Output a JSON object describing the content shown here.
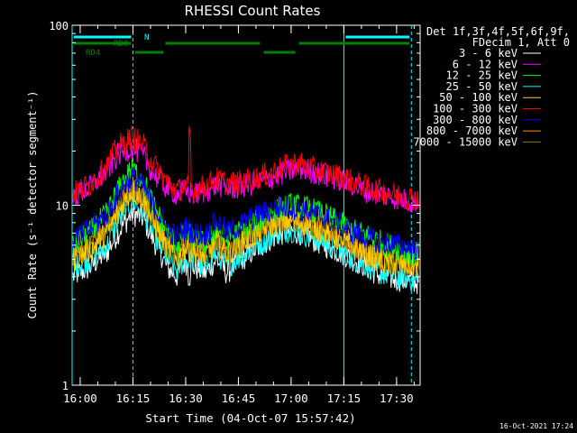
{
  "chart_data": {
    "type": "line",
    "title": "RHESSI Count Rates",
    "xlabel": "Start Time (04-Oct-07 15:57:42)",
    "ylabel": "Count Rate (s⁻¹ detector segment⁻¹)",
    "x_unit": "minutes after 15:57:42",
    "xlim": [
      0,
      99
    ],
    "ylim": [
      1,
      100
    ],
    "y_scale": "log",
    "x_ticks": [
      {
        "label": "16:00",
        "t": 2.3
      },
      {
        "label": "16:15",
        "t": 17.3
      },
      {
        "label": "16:30",
        "t": 32.3
      },
      {
        "label": "16:45",
        "t": 47.3
      },
      {
        "label": "17:00",
        "t": 62.3
      },
      {
        "label": "17:15",
        "t": 77.3
      },
      {
        "label": "17:30",
        "t": 92.3
      }
    ],
    "y_ticks": [
      {
        "label": "1",
        "value": 1
      },
      {
        "label": "10",
        "value": 10
      },
      {
        "label": "100",
        "value": 100
      }
    ],
    "legend_header": [
      "Det 1f,3f,4f,5f,6f,9f,",
      "FDecim 1, Att 0"
    ],
    "legend_position": "right",
    "timestamp": "16-Oct-2021 17:24",
    "series": [
      {
        "name": "3 - 6 keV",
        "color": "#ffffff",
        "x": [
          0,
          5,
          10,
          13,
          17,
          20,
          23,
          27,
          30,
          32,
          35,
          38,
          41,
          44,
          47,
          50,
          54,
          58,
          62,
          65,
          68,
          72,
          76,
          80,
          84,
          88,
          92,
          96,
          99
        ],
        "y": [
          4.0,
          4.5,
          5.5,
          7.0,
          9.0,
          8.5,
          6.5,
          4.5,
          4.0,
          4.8,
          4.5,
          4.2,
          5.0,
          4.2,
          4.8,
          5.3,
          6.0,
          6.8,
          7.2,
          7.0,
          6.5,
          6.0,
          5.5,
          5.0,
          4.5,
          4.0,
          3.9,
          3.8,
          3.7
        ]
      },
      {
        "name": "6 - 12 keV",
        "color": "#ff00ff",
        "x": [
          0,
          5,
          10,
          13,
          17,
          20,
          23,
          27,
          30,
          32,
          35,
          38,
          41,
          44,
          47,
          50,
          54,
          58,
          62,
          65,
          68,
          72,
          76,
          80,
          84,
          88,
          92,
          96,
          99
        ],
        "y": [
          11.0,
          12.5,
          15.5,
          19.0,
          21.0,
          19.0,
          15.0,
          12.5,
          11.5,
          12.0,
          11.5,
          12.0,
          13.0,
          12.5,
          12.5,
          13.0,
          13.5,
          14.5,
          15.5,
          16.0,
          15.5,
          14.5,
          14.0,
          13.0,
          12.0,
          11.5,
          11.0,
          10.5,
          10.5
        ]
      },
      {
        "name": "12 - 25 keV",
        "color": "#00ff00",
        "x": [
          0,
          5,
          10,
          13,
          17,
          20,
          23,
          27,
          30,
          32,
          35,
          38,
          41,
          44,
          47,
          50,
          54,
          58,
          62,
          65,
          68,
          72,
          76,
          80,
          84,
          88,
          92,
          96,
          99
        ],
        "y": [
          6.0,
          7.0,
          9.0,
          12.0,
          16.0,
          14.0,
          10.0,
          7.0,
          6.0,
          7.0,
          6.5,
          6.0,
          7.5,
          6.5,
          7.0,
          7.5,
          8.5,
          9.5,
          10.0,
          9.8,
          9.5,
          8.8,
          8.0,
          7.2,
          6.8,
          6.2,
          5.8,
          5.5,
          5.3
        ]
      },
      {
        "name": "25 - 50 keV",
        "color": "#00ffff",
        "x": [
          0,
          5,
          10,
          13,
          17,
          20,
          23,
          27,
          30,
          32,
          35,
          38,
          41,
          44,
          47,
          50,
          54,
          58,
          62,
          65,
          68,
          72,
          76,
          80,
          84,
          88,
          92,
          96,
          99
        ],
        "y": [
          4.5,
          5.0,
          6.0,
          8.0,
          10.5,
          9.5,
          7.0,
          5.0,
          4.3,
          5.0,
          4.8,
          4.5,
          5.5,
          4.6,
          5.0,
          5.5,
          6.2,
          7.0,
          7.3,
          7.0,
          6.7,
          6.2,
          5.6,
          5.0,
          4.6,
          4.2,
          4.0,
          3.9,
          3.8
        ]
      },
      {
        "name": "50 - 100 keV",
        "color": "#ffcc00",
        "x": [
          0,
          5,
          10,
          13,
          17,
          20,
          23,
          27,
          30,
          32,
          35,
          38,
          41,
          44,
          47,
          50,
          54,
          58,
          62,
          65,
          68,
          72,
          76,
          80,
          84,
          88,
          92,
          96,
          99
        ],
        "y": [
          5.0,
          5.6,
          7.0,
          9.0,
          12.0,
          11.0,
          8.0,
          5.8,
          5.0,
          5.8,
          5.5,
          5.2,
          6.3,
          5.4,
          5.9,
          6.4,
          7.2,
          8.0,
          8.3,
          8.0,
          7.6,
          7.1,
          6.5,
          5.8,
          5.3,
          4.9,
          4.7,
          4.6,
          4.5
        ]
      },
      {
        "name": "100 - 300 keV",
        "color": "#ff0000",
        "x": [
          0,
          5,
          10,
          13,
          17,
          20,
          23,
          27,
          30,
          32,
          35,
          38,
          41,
          44,
          47,
          50,
          54,
          58,
          62,
          65,
          68,
          72,
          76,
          80,
          84,
          88,
          92,
          96,
          99
        ],
        "y": [
          11.5,
          13.0,
          16.5,
          21.0,
          24.0,
          22.0,
          17.0,
          13.5,
          12.0,
          12.8,
          12.3,
          12.8,
          14.0,
          13.2,
          13.3,
          13.8,
          14.5,
          15.5,
          17.0,
          17.0,
          16.0,
          15.2,
          14.5,
          13.5,
          12.5,
          12.0,
          11.5,
          11.0,
          10.8
        ]
      },
      {
        "name": "300 - 800 keV",
        "color": "#0000ff",
        "x": [
          0,
          5,
          10,
          13,
          17,
          20,
          23,
          27,
          30,
          32,
          35,
          38,
          41,
          44,
          47,
          50,
          54,
          58,
          62,
          65,
          68,
          72,
          76,
          80,
          84,
          88,
          92,
          96,
          99
        ],
        "y": [
          6.5,
          7.3,
          9.0,
          11.5,
          14.5,
          13.0,
          10.0,
          7.5,
          6.5,
          7.5,
          7.0,
          6.8,
          8.2,
          7.0,
          7.6,
          8.2,
          9.0,
          9.6,
          9.8,
          9.5,
          9.1,
          8.5,
          7.8,
          7.0,
          6.6,
          6.2,
          6.0,
          5.8,
          5.8
        ]
      },
      {
        "name": "800 - 7000 keV",
        "color": "#ff8c00",
        "x": [
          0,
          5,
          10,
          13,
          17,
          20,
          23,
          27,
          30,
          32,
          35,
          38,
          41,
          44,
          47,
          50,
          54,
          58,
          62,
          65,
          68,
          72,
          76,
          80,
          84,
          88,
          92,
          96,
          99
        ],
        "y": [
          5.3,
          6.0,
          7.5,
          9.5,
          12.5,
          11.5,
          8.5,
          6.2,
          5.3,
          6.1,
          5.8,
          5.5,
          6.6,
          5.7,
          6.2,
          6.7,
          7.5,
          8.3,
          8.5,
          8.3,
          7.9,
          7.3,
          6.7,
          6.0,
          5.5,
          5.1,
          4.9,
          4.8,
          4.7
        ]
      },
      {
        "name": "7000 - 15000 keV",
        "color": "#808000",
        "x": [
          0,
          5,
          10,
          13,
          17,
          20,
          23,
          27,
          30,
          32,
          35,
          38,
          41,
          44,
          47,
          50,
          54,
          58,
          62,
          65,
          68,
          72,
          76,
          80,
          84,
          88,
          92,
          96,
          99
        ],
        "y": [
          5.2,
          5.9,
          7.3,
          9.3,
          12.2,
          11.2,
          8.3,
          6.0,
          5.2,
          6.0,
          5.7,
          5.4,
          6.5,
          5.6,
          6.1,
          6.6,
          7.4,
          8.2,
          8.4,
          8.2,
          7.8,
          7.2,
          6.6,
          5.9,
          5.4,
          5.0,
          4.8,
          4.7,
          4.6
        ]
      }
    ],
    "spike": {
      "t": 33.5,
      "peak": 28,
      "color": "#ff0000"
    },
    "vertical_lines": [
      {
        "t": 0,
        "style": "solid",
        "color": "#00ffff"
      },
      {
        "t": 17.3,
        "style": "dashed",
        "color": "#00ffff"
      },
      {
        "t": 77.3,
        "style": "solid",
        "color": "#00ffff"
      },
      {
        "t": 96.5,
        "style": "dashed",
        "color": "#00ffff"
      }
    ],
    "flag_bars": [
      {
        "label": "N",
        "color": "#00ffff",
        "segments": [
          [
            0,
            17.3
          ],
          [
            77.3,
            96.5
          ]
        ]
      },
      {
        "label": "RD0",
        "color": "#008000",
        "segments": [
          [
            0,
            17.3
          ],
          [
            26,
            54
          ],
          [
            64,
            96.5
          ]
        ]
      },
      {
        "label": "RD4",
        "color": "#008000",
        "segments": [
          [
            17.3,
            26.5
          ],
          [
            54,
            64
          ]
        ]
      }
    ]
  }
}
